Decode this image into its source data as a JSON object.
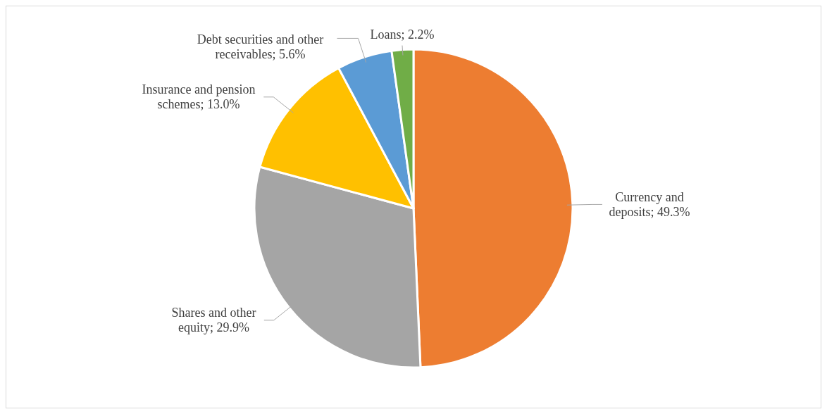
{
  "chart_data": {
    "type": "pie",
    "categories": [
      "Currency and deposits",
      "Shares and other equity",
      "Insurance and pension schemes",
      "Debt securities and other receivables",
      "Loans"
    ],
    "values": [
      49.3,
      29.9,
      13.0,
      5.6,
      2.2
    ],
    "value_labels": [
      "49.3%",
      "29.9%",
      "13.0%",
      "5.6%",
      "2.2%"
    ],
    "colors": [
      "#ed7d31",
      "#a5a5a5",
      "#ffc000",
      "#5b9bd5",
      "#70ad47"
    ],
    "legend": false
  }
}
